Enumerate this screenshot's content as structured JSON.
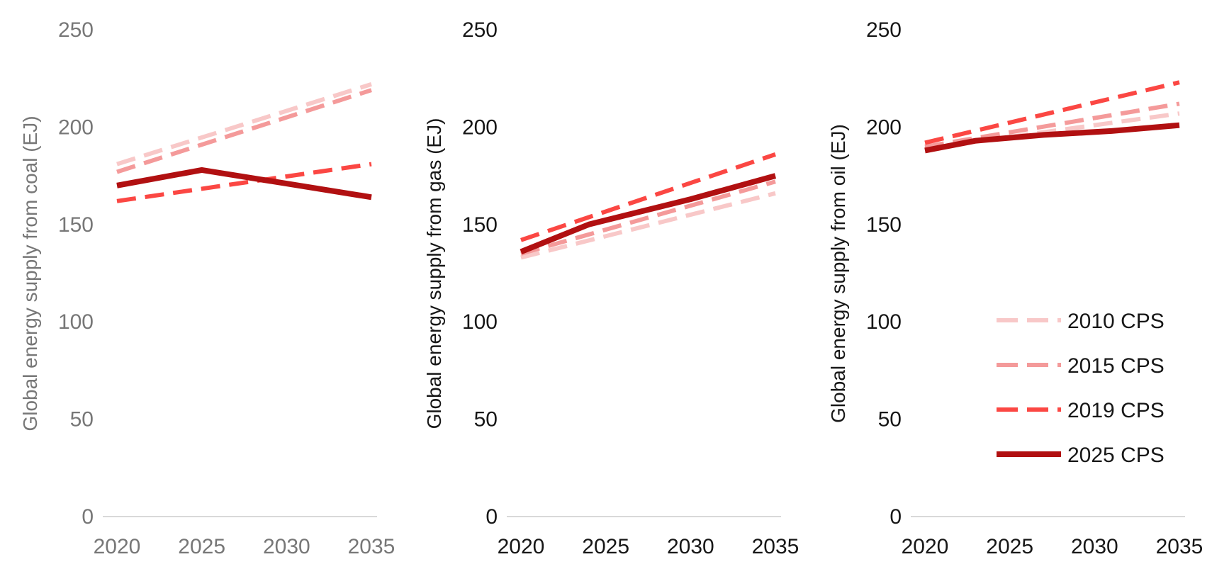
{
  "figure": {
    "background": "#ffffff",
    "axis_line_color": "#d9d9d9",
    "description": "Three line charts comparing IEA Current Policies Scenario vintages for global energy supply from coal, gas and oil, 2020-2035"
  },
  "legend": {
    "position": "right-lower-inside-oil-panel",
    "entries": [
      {
        "name": "2010-cps",
        "label": "2010 CPS",
        "color": "#f8c8c8",
        "style": "dashed"
      },
      {
        "name": "2015-cps",
        "label": "2015 CPS",
        "color": "#f49a9a",
        "style": "dashed"
      },
      {
        "name": "2019-cps",
        "label": "2019 CPS",
        "color": "#fb4743",
        "style": "dashed"
      },
      {
        "name": "2025-cps",
        "label": "2025 CPS",
        "color": "#b11011",
        "style": "solid"
      }
    ]
  },
  "chart_data": [
    {
      "type": "line",
      "title": "coal",
      "ylabel": "Global energy supply from coal (EJ)",
      "xlabel": "",
      "text_color": "#777777",
      "xlim": [
        2020,
        2035
      ],
      "ylim": [
        0,
        250
      ],
      "x_tick_labels": [
        "2020",
        "2025",
        "2030",
        "2035"
      ],
      "y_tick_labels": [
        "0",
        "50",
        "100",
        "150",
        "200",
        "250"
      ],
      "grid": false,
      "show_legend": false,
      "series": [
        {
          "name": "2010 CPS",
          "color": "#f8c8c8",
          "style": "dashed",
          "points": [
            [
              2020,
              181
            ],
            [
              2035,
              222
            ]
          ]
        },
        {
          "name": "2015 CPS",
          "color": "#f49a9a",
          "style": "dashed",
          "points": [
            [
              2020,
              177
            ],
            [
              2035,
              219
            ]
          ]
        },
        {
          "name": "2019 CPS",
          "color": "#fb4743",
          "style": "dashed",
          "points": [
            [
              2020,
              162
            ],
            [
              2035,
              181
            ]
          ]
        },
        {
          "name": "2025 CPS",
          "color": "#b11011",
          "style": "solid",
          "points": [
            [
              2020,
              170
            ],
            [
              2025,
              178
            ],
            [
              2030,
              171
            ],
            [
              2035,
              164
            ]
          ]
        }
      ]
    },
    {
      "type": "line",
      "title": "gas",
      "ylabel": "Global energy supply from gas (EJ)",
      "xlabel": "",
      "text_color": "#171717",
      "xlim": [
        2020,
        2035
      ],
      "ylim": [
        0,
        250
      ],
      "x_tick_labels": [
        "2020",
        "2025",
        "2030",
        "2035"
      ],
      "y_tick_labels": [
        "0",
        "50",
        "100",
        "150",
        "200",
        "250"
      ],
      "grid": false,
      "show_legend": false,
      "series": [
        {
          "name": "2010 CPS",
          "color": "#f8c8c8",
          "style": "dashed",
          "points": [
            [
              2020,
              133
            ],
            [
              2035,
              166
            ]
          ]
        },
        {
          "name": "2015 CPS",
          "color": "#f49a9a",
          "style": "dashed",
          "points": [
            [
              2020,
              135
            ],
            [
              2035,
              172
            ]
          ]
        },
        {
          "name": "2019 CPS",
          "color": "#fb4743",
          "style": "dashed",
          "points": [
            [
              2020,
              142
            ],
            [
              2035,
              186
            ]
          ]
        },
        {
          "name": "2025 CPS",
          "color": "#b11011",
          "style": "solid",
          "points": [
            [
              2020,
              136
            ],
            [
              2024,
              150
            ],
            [
              2030,
              163
            ],
            [
              2035,
              175
            ]
          ]
        }
      ]
    },
    {
      "type": "line",
      "title": "oil",
      "ylabel": "Global energy supply from oil (EJ)",
      "xlabel": "",
      "text_color": "#171717",
      "xlim": [
        2020,
        2035
      ],
      "ylim": [
        0,
        250
      ],
      "x_tick_labels": [
        "2020",
        "2025",
        "2030",
        "2035"
      ],
      "y_tick_labels": [
        "0",
        "50",
        "100",
        "150",
        "200",
        "250"
      ],
      "grid": false,
      "show_legend": true,
      "series": [
        {
          "name": "2010 CPS",
          "color": "#f8c8c8",
          "style": "dashed",
          "points": [
            [
              2020,
              189
            ],
            [
              2035,
              207
            ]
          ]
        },
        {
          "name": "2015 CPS",
          "color": "#f49a9a",
          "style": "dashed",
          "points": [
            [
              2020,
              190
            ],
            [
              2035,
              212
            ]
          ]
        },
        {
          "name": "2019 CPS",
          "color": "#fb4743",
          "style": "dashed",
          "points": [
            [
              2020,
              192
            ],
            [
              2035,
              223
            ]
          ]
        },
        {
          "name": "2025 CPS",
          "color": "#b11011",
          "style": "solid",
          "points": [
            [
              2020,
              188
            ],
            [
              2023,
              193
            ],
            [
              2027,
              196
            ],
            [
              2031,
              198
            ],
            [
              2035,
              201
            ]
          ]
        }
      ]
    }
  ]
}
